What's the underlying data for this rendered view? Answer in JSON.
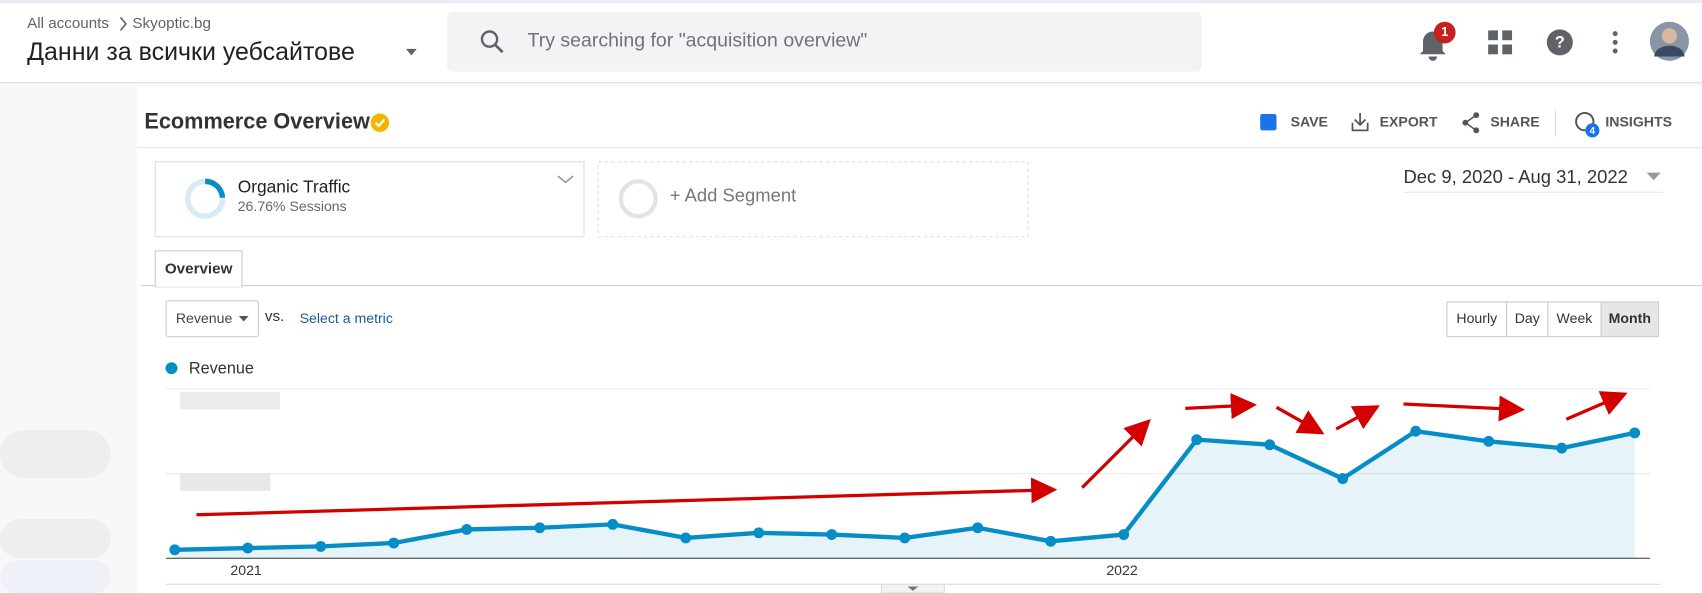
{
  "header": {
    "breadcrumb": [
      "All accounts",
      "Skyoptic.bg"
    ],
    "property": "Данни за всички уебсайтове",
    "search_placeholder": "Try searching for \"acquisition overview\"",
    "notification_count": 1
  },
  "report": {
    "title": "Ecommerce Overview",
    "actions": [
      "SAVE",
      "EXPORT",
      "SHARE",
      "INSIGHTS"
    ],
    "insights_badge": 4
  },
  "segments": [
    {
      "name": "Organic Traffic",
      "detail": "26.76% Sessions"
    }
  ],
  "add_segment": "+ Add Segment",
  "date_range": "Dec 9, 2020 - Aug 31, 2022",
  "tabs": [
    "Overview"
  ],
  "metric": "Revenue",
  "vs": "vs.",
  "select_metric": "Select a metric",
  "granularity": [
    "Hourly",
    "Day",
    "Week",
    "Month"
  ],
  "chart_data": {
    "type": "line",
    "categories": [
      null,
      "2021",
      null,
      null,
      null,
      null,
      null,
      null,
      null,
      null,
      null,
      null,
      null,
      "2022",
      null,
      null,
      null,
      null,
      null,
      null,
      null
    ],
    "series": [
      {
        "name": "Revenue",
        "color": "#058dc7",
        "values": [
          5,
          6,
          7,
          9,
          17,
          18,
          20,
          12,
          15,
          14,
          12,
          18,
          10,
          14,
          70,
          67,
          47,
          75,
          69,
          65,
          74
        ]
      }
    ],
    "ylim": [
      0,
      100
    ]
  }
}
